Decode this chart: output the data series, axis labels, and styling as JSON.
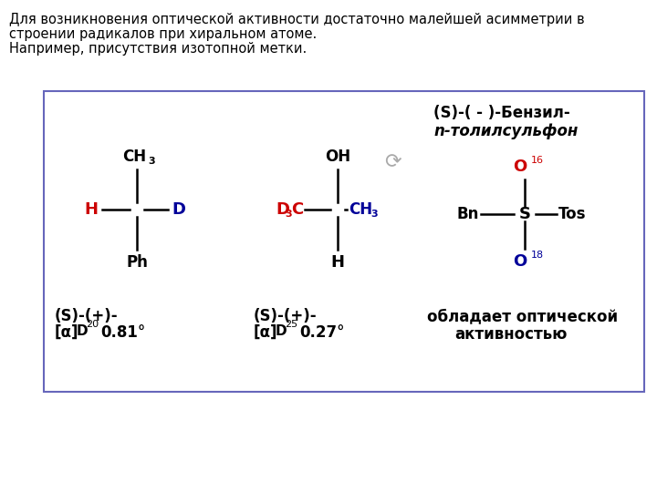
{
  "bg_color": "#ffffff",
  "box_color": "#6666bb",
  "title_line1": "Для возникновения оптической активности достаточно малейшей асимметрии в",
  "title_line2": "строении радикалов при хиральном атоме.",
  "title_line3": "Например, присутствия изотопной метки.",
  "black": "#000000",
  "red": "#cc0000",
  "blue": "#000099",
  "gray": "#aaaaaa"
}
